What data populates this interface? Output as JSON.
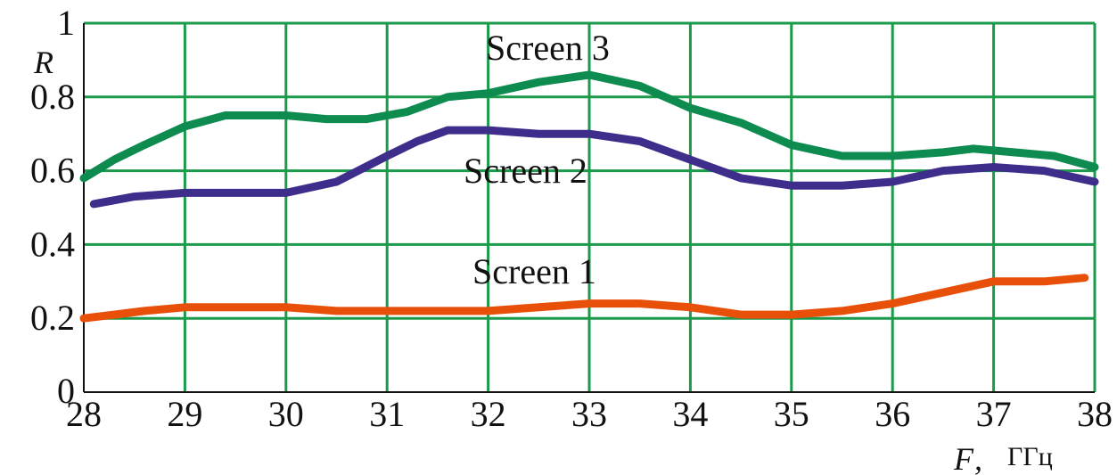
{
  "chart_data": {
    "type": "line",
    "xlabel": "F",
    "xunit": "ГГц",
    "ylabel": "R",
    "xlim": [
      28,
      38
    ],
    "ylim": [
      0,
      1
    ],
    "x_ticks": [
      "28",
      "29",
      "30",
      "31",
      "32",
      "33",
      "34",
      "35",
      "36",
      "37",
      "38"
    ],
    "y_ticks": [
      "0",
      "0.2",
      "0.4",
      "0.6",
      "0.8",
      "1"
    ],
    "grid": true,
    "grid_color": "#1a9a4a",
    "series": [
      {
        "name": "Screen 1",
        "color": "#e8500a",
        "points": [
          [
            28,
            0.2
          ],
          [
            28.3,
            0.21
          ],
          [
            28.6,
            0.22
          ],
          [
            29,
            0.23
          ],
          [
            29.5,
            0.23
          ],
          [
            30,
            0.23
          ],
          [
            30.5,
            0.22
          ],
          [
            31,
            0.22
          ],
          [
            31.5,
            0.22
          ],
          [
            32,
            0.22
          ],
          [
            32.5,
            0.23
          ],
          [
            33,
            0.24
          ],
          [
            33.5,
            0.24
          ],
          [
            34,
            0.23
          ],
          [
            34.5,
            0.21
          ],
          [
            35,
            0.21
          ],
          [
            35.5,
            0.22
          ],
          [
            36,
            0.24
          ],
          [
            36.5,
            0.27
          ],
          [
            37,
            0.3
          ],
          [
            37.5,
            0.3
          ],
          [
            37.9,
            0.31
          ]
        ]
      },
      {
        "name": "Screen 2",
        "color": "#3f2d8c",
        "points": [
          [
            28.1,
            0.51
          ],
          [
            28.5,
            0.53
          ],
          [
            29,
            0.54
          ],
          [
            29.5,
            0.54
          ],
          [
            30,
            0.54
          ],
          [
            30.5,
            0.57
          ],
          [
            31,
            0.64
          ],
          [
            31.3,
            0.68
          ],
          [
            31.6,
            0.71
          ],
          [
            32,
            0.71
          ],
          [
            32.5,
            0.7
          ],
          [
            33,
            0.7
          ],
          [
            33.5,
            0.68
          ],
          [
            34,
            0.63
          ],
          [
            34.5,
            0.58
          ],
          [
            35,
            0.56
          ],
          [
            35.5,
            0.56
          ],
          [
            36,
            0.57
          ],
          [
            36.5,
            0.6
          ],
          [
            37,
            0.61
          ],
          [
            37.5,
            0.6
          ],
          [
            38,
            0.57
          ]
        ]
      },
      {
        "name": "Screen 3",
        "color": "#0e8c50",
        "points": [
          [
            28,
            0.58
          ],
          [
            28.3,
            0.63
          ],
          [
            28.6,
            0.67
          ],
          [
            29,
            0.72
          ],
          [
            29.4,
            0.75
          ],
          [
            30,
            0.75
          ],
          [
            30.4,
            0.74
          ],
          [
            30.8,
            0.74
          ],
          [
            31.2,
            0.76
          ],
          [
            31.6,
            0.8
          ],
          [
            32,
            0.81
          ],
          [
            32.5,
            0.84
          ],
          [
            33,
            0.86
          ],
          [
            33.5,
            0.83
          ],
          [
            34,
            0.77
          ],
          [
            34.5,
            0.73
          ],
          [
            35,
            0.67
          ],
          [
            35.5,
            0.64
          ],
          [
            36,
            0.64
          ],
          [
            36.5,
            0.65
          ],
          [
            36.8,
            0.66
          ],
          [
            37.2,
            0.65
          ],
          [
            37.6,
            0.64
          ],
          [
            38,
            0.61
          ]
        ]
      }
    ]
  }
}
